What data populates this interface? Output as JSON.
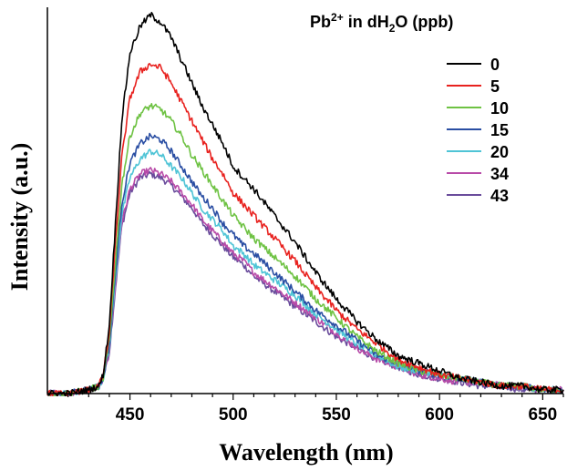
{
  "chart_data": {
    "type": "line",
    "xlabel": "Wavelength (nm)",
    "ylabel": "Intensity (a.u.)",
    "xlim": [
      410,
      660
    ],
    "ylim": [
      0,
      1.02
    ],
    "grid": false,
    "legend_placement": "top-right",
    "legend_title": {
      "base": "Pb",
      "superscript": "2+",
      "middle": " in dH",
      "subscript": "2",
      "end": "O (ppb)"
    },
    "x_ticks": [
      "450",
      "500",
      "550",
      "600",
      "650"
    ],
    "x": [
      410,
      420,
      430,
      435,
      437,
      440,
      443,
      446,
      450,
      455,
      460,
      465,
      470,
      475,
      480,
      485,
      490,
      495,
      500,
      505,
      510,
      520,
      530,
      540,
      550,
      560,
      570,
      580,
      590,
      600,
      610,
      620,
      630,
      640,
      650,
      660
    ],
    "series": [
      {
        "name": "0",
        "color": "#000000",
        "values": [
          0.0,
          0.0,
          0.01,
          0.02,
          0.05,
          0.18,
          0.45,
          0.72,
          0.9,
          0.97,
          1.0,
          0.98,
          0.94,
          0.88,
          0.82,
          0.76,
          0.71,
          0.66,
          0.6,
          0.57,
          0.54,
          0.47,
          0.4,
          0.32,
          0.25,
          0.19,
          0.14,
          0.1,
          0.08,
          0.06,
          0.04,
          0.03,
          0.02,
          0.02,
          0.01,
          0.01
        ]
      },
      {
        "name": "5",
        "color": "#e8221f",
        "values": [
          0.0,
          0.0,
          0.01,
          0.02,
          0.05,
          0.16,
          0.4,
          0.62,
          0.78,
          0.85,
          0.87,
          0.86,
          0.82,
          0.77,
          0.72,
          0.67,
          0.62,
          0.58,
          0.53,
          0.5,
          0.47,
          0.41,
          0.35,
          0.28,
          0.22,
          0.17,
          0.13,
          0.09,
          0.07,
          0.05,
          0.04,
          0.03,
          0.02,
          0.02,
          0.01,
          0.01
        ]
      },
      {
        "name": "10",
        "color": "#6ec243",
        "values": [
          0.0,
          0.0,
          0.01,
          0.02,
          0.04,
          0.14,
          0.35,
          0.55,
          0.68,
          0.74,
          0.76,
          0.75,
          0.72,
          0.68,
          0.63,
          0.59,
          0.55,
          0.51,
          0.47,
          0.44,
          0.41,
          0.36,
          0.31,
          0.25,
          0.2,
          0.15,
          0.11,
          0.08,
          0.06,
          0.05,
          0.04,
          0.03,
          0.02,
          0.02,
          0.01,
          0.01
        ]
      },
      {
        "name": "15",
        "color": "#2a4ea3",
        "values": [
          0.0,
          0.0,
          0.01,
          0.02,
          0.04,
          0.13,
          0.32,
          0.5,
          0.61,
          0.66,
          0.68,
          0.67,
          0.64,
          0.6,
          0.56,
          0.52,
          0.49,
          0.45,
          0.42,
          0.39,
          0.37,
          0.32,
          0.27,
          0.22,
          0.18,
          0.14,
          0.1,
          0.08,
          0.06,
          0.05,
          0.04,
          0.03,
          0.02,
          0.02,
          0.01,
          0.01
        ]
      },
      {
        "name": "20",
        "color": "#4fc4d6",
        "values": [
          0.0,
          0.0,
          0.01,
          0.02,
          0.04,
          0.12,
          0.3,
          0.47,
          0.57,
          0.62,
          0.64,
          0.63,
          0.6,
          0.57,
          0.53,
          0.49,
          0.46,
          0.43,
          0.39,
          0.37,
          0.34,
          0.3,
          0.26,
          0.21,
          0.17,
          0.13,
          0.1,
          0.07,
          0.06,
          0.05,
          0.04,
          0.03,
          0.02,
          0.02,
          0.01,
          0.01
        ]
      },
      {
        "name": "34",
        "color": "#b84aa8",
        "values": [
          0.0,
          0.0,
          0.01,
          0.02,
          0.04,
          0.12,
          0.29,
          0.45,
          0.54,
          0.58,
          0.59,
          0.58,
          0.56,
          0.53,
          0.5,
          0.46,
          0.43,
          0.4,
          0.37,
          0.35,
          0.32,
          0.28,
          0.24,
          0.2,
          0.16,
          0.12,
          0.09,
          0.07,
          0.05,
          0.04,
          0.03,
          0.03,
          0.02,
          0.02,
          0.01,
          0.01
        ]
      },
      {
        "name": "43",
        "color": "#6a4c9c",
        "values": [
          0.0,
          0.0,
          0.01,
          0.02,
          0.04,
          0.11,
          0.28,
          0.44,
          0.53,
          0.57,
          0.58,
          0.57,
          0.55,
          0.52,
          0.49,
          0.45,
          0.42,
          0.39,
          0.36,
          0.34,
          0.31,
          0.27,
          0.23,
          0.19,
          0.15,
          0.12,
          0.09,
          0.07,
          0.05,
          0.04,
          0.03,
          0.02,
          0.02,
          0.01,
          0.01,
          0.01
        ]
      }
    ]
  }
}
